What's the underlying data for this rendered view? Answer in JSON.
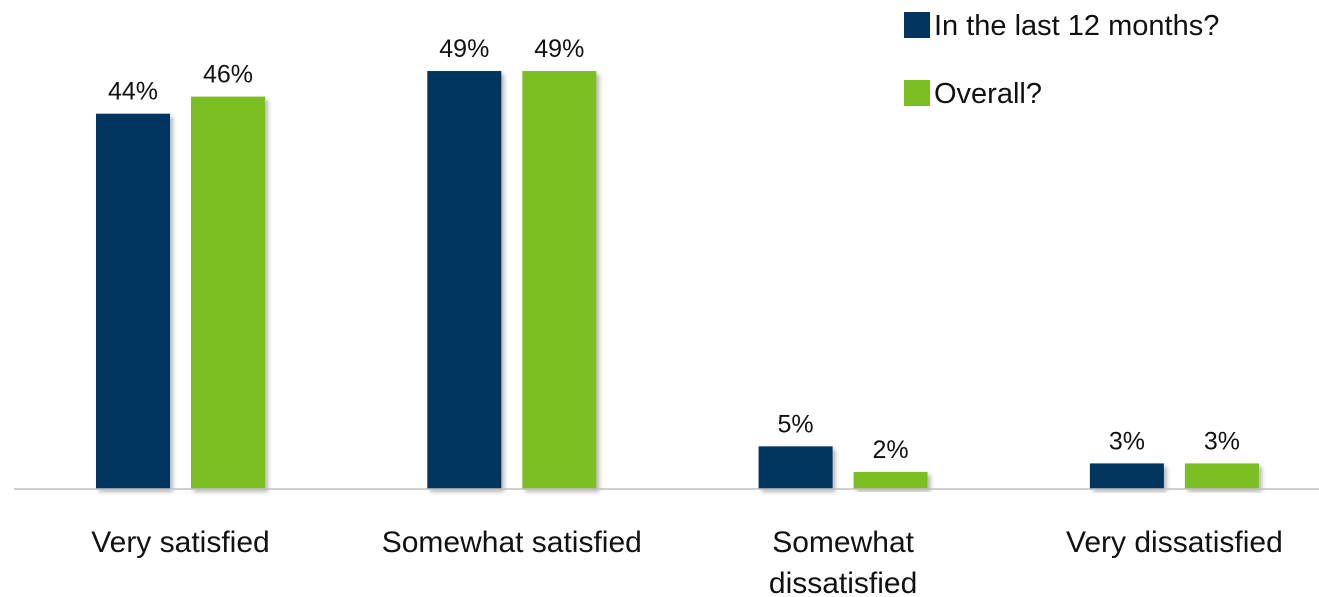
{
  "chart_data": {
    "type": "bar",
    "categories": [
      [
        "Very satisfied"
      ],
      [
        "Somewhat satisfied"
      ],
      [
        "Somewhat",
        "dissatisfied"
      ],
      [
        "Very dissatisfied"
      ]
    ],
    "series": [
      {
        "name": "In the last 12 months?",
        "values": [
          44,
          49,
          5,
          3
        ],
        "color": "#023660",
        "labels": [
          "44%",
          "49%",
          "5%",
          "3%"
        ]
      },
      {
        "name": "Overall?",
        "values": [
          46,
          49,
          2,
          3
        ],
        "color": "#7cbf22",
        "labels": [
          "46%",
          "49%",
          "2%",
          "3%"
        ]
      }
    ],
    "ylim": [
      0,
      50
    ],
    "grid": false,
    "legend_position": "top-right",
    "axis_color": "#bfbfbf"
  }
}
